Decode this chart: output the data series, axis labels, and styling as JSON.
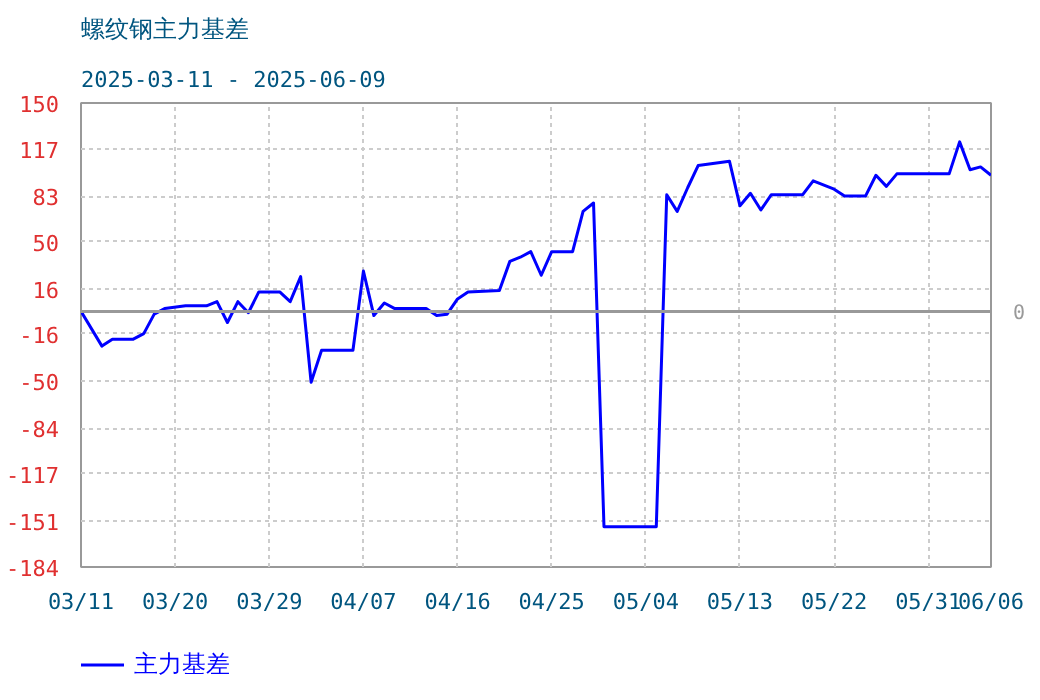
{
  "chart_data": {
    "type": "line",
    "title": "螺纹钢主力基差",
    "subtitle": "2025-03-11 - 2025-06-09",
    "x": [
      "2025-03-11",
      "2025-03-13",
      "2025-03-14",
      "2025-03-16",
      "2025-03-17",
      "2025-03-18",
      "2025-03-19",
      "2025-03-21",
      "2025-03-23",
      "2025-03-24",
      "2025-03-25",
      "2025-03-26",
      "2025-03-27",
      "2025-03-28",
      "2025-03-30",
      "2025-03-31",
      "2025-04-01",
      "2025-04-02",
      "2025-04-03",
      "2025-04-06",
      "2025-04-07",
      "2025-04-08",
      "2025-04-09",
      "2025-04-10",
      "2025-04-13",
      "2025-04-14",
      "2025-04-15",
      "2025-04-16",
      "2025-04-17",
      "2025-04-20",
      "2025-04-21",
      "2025-04-22",
      "2025-04-23",
      "2025-04-24",
      "2025-04-25",
      "2025-04-27",
      "2025-04-28",
      "2025-04-29",
      "2025-04-30",
      "2025-05-05",
      "2025-05-06",
      "2025-05-07",
      "2025-05-08",
      "2025-05-09",
      "2025-05-12",
      "2025-05-13",
      "2025-05-14",
      "2025-05-15",
      "2025-05-16",
      "2025-05-19",
      "2025-05-20",
      "2025-05-22",
      "2025-05-23",
      "2025-05-25",
      "2025-05-26",
      "2025-05-27",
      "2025-05-28",
      "2025-06-02",
      "2025-06-03",
      "2025-06-04",
      "2025-06-05",
      "2025-06-06"
    ],
    "series": [
      {
        "name": "主力基差",
        "color": "#0000ff",
        "values": [
          0,
          -25,
          -20,
          -20,
          -16,
          -2,
          2,
          4,
          4,
          7,
          -8,
          7,
          -1,
          14,
          14,
          7,
          25,
          -51,
          -28,
          -28,
          29,
          -3,
          6,
          2,
          2,
          -3,
          -2,
          9,
          14,
          15,
          36,
          39,
          43,
          26,
          43,
          43,
          72,
          78,
          -155,
          -155,
          84,
          72,
          89,
          105,
          108,
          76,
          85,
          73,
          84,
          84,
          94,
          88,
          83,
          83,
          98,
          90,
          99,
          99,
          122,
          102,
          104,
          98
        ]
      }
    ],
    "xlim": [
      "2025-03-11",
      "2025-06-06"
    ],
    "xticks": [
      {
        "value": "2025-03-11",
        "label": "03/11"
      },
      {
        "value": "2025-03-20",
        "label": "03/20"
      },
      {
        "value": "2025-03-29",
        "label": "03/29"
      },
      {
        "value": "2025-04-07",
        "label": "04/07"
      },
      {
        "value": "2025-04-16",
        "label": "04/16"
      },
      {
        "value": "2025-04-25",
        "label": "04/25"
      },
      {
        "value": "2025-05-04",
        "label": "05/04"
      },
      {
        "value": "2025-05-13",
        "label": "05/13"
      },
      {
        "value": "2025-05-22",
        "label": "05/22"
      },
      {
        "value": "2025-05-31",
        "label": "05/31"
      },
      {
        "value": "2025-06-06",
        "label": "06/06"
      }
    ],
    "ylim": [
      -184,
      150
    ],
    "yticks": [
      -184,
      -151,
      -117,
      -84,
      -50,
      -16,
      16,
      50,
      83,
      117,
      150
    ],
    "ref_lines": [
      {
        "axis": "y",
        "value": 0,
        "label": "0",
        "color": "#999999"
      }
    ],
    "grid": true,
    "legend": "bottom left",
    "line_style": "solid",
    "marker": "none"
  }
}
